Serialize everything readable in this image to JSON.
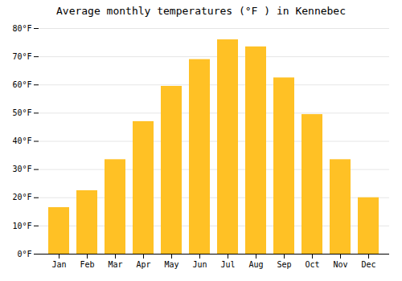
{
  "chart_data": {
    "type": "bar",
    "title": "Average monthly temperatures (°F ) in Kennebec",
    "categories": [
      "Jan",
      "Feb",
      "Mar",
      "Apr",
      "May",
      "Jun",
      "Jul",
      "Aug",
      "Sep",
      "Oct",
      "Nov",
      "Dec"
    ],
    "values": [
      16.5,
      22.5,
      33.5,
      47,
      59.5,
      69,
      76,
      73.5,
      62.5,
      49.5,
      33.5,
      20
    ],
    "color": "#FFC125",
    "ylim": [
      0,
      80
    ],
    "yticks": [
      {
        "value": 0,
        "label": "0°F"
      },
      {
        "value": 10,
        "label": "10°F"
      },
      {
        "value": 20,
        "label": "20°F"
      },
      {
        "value": 30,
        "label": "30°F"
      },
      {
        "value": 40,
        "label": "40°F"
      },
      {
        "value": 50,
        "label": "50°F"
      },
      {
        "value": 60,
        "label": "60°F"
      },
      {
        "value": 70,
        "label": "70°F"
      },
      {
        "value": 80,
        "label": "80°F"
      }
    ],
    "grid": true
  }
}
